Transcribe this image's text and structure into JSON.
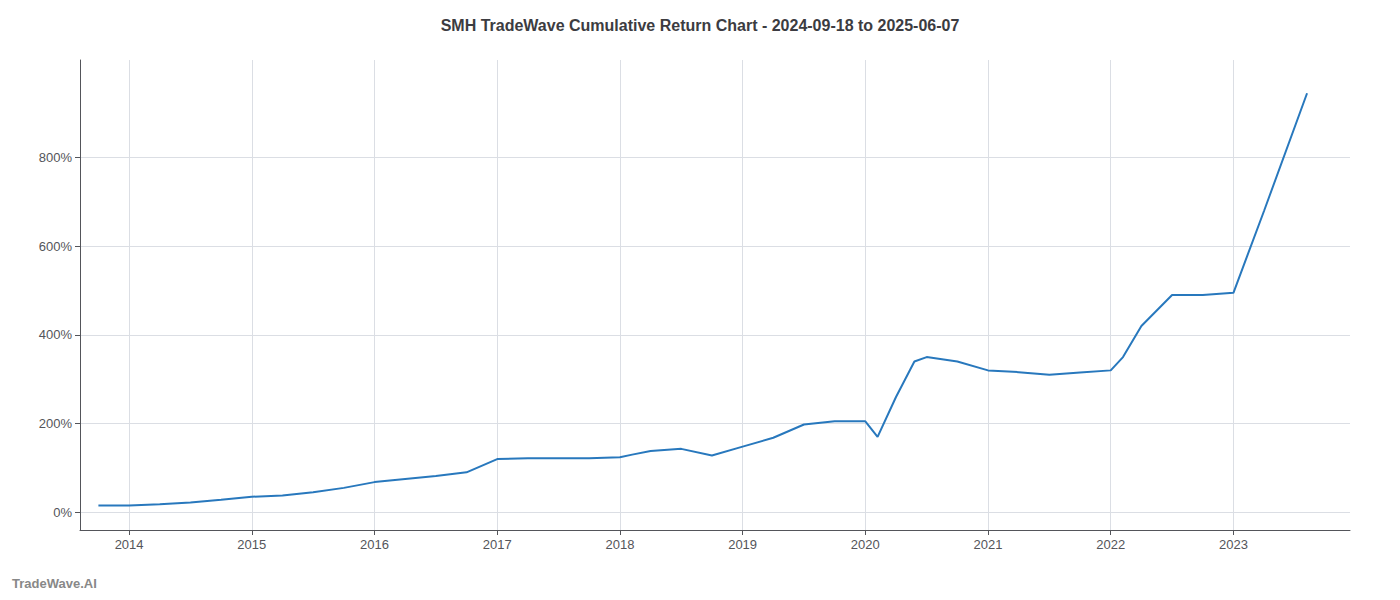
{
  "chart_data": {
    "type": "line",
    "title": "SMH TradeWave Cumulative Return Chart - 2024-09-18 to 2025-06-07",
    "annotations": [
      "TradeWave.AI"
    ],
    "x": [
      2013.75,
      2014.0,
      2014.25,
      2014.5,
      2014.75,
      2015.0,
      2015.25,
      2015.5,
      2015.75,
      2016.0,
      2016.25,
      2016.5,
      2016.75,
      2017.0,
      2017.25,
      2017.5,
      2017.75,
      2018.0,
      2018.1,
      2018.25,
      2018.5,
      2018.75,
      2019.0,
      2019.25,
      2019.5,
      2019.75,
      2020.0,
      2020.1,
      2020.25,
      2020.4,
      2020.5,
      2020.75,
      2021.0,
      2021.25,
      2021.5,
      2021.75,
      2022.0,
      2022.1,
      2022.25,
      2022.5,
      2022.75,
      2023.0,
      2023.25,
      2023.6
    ],
    "values": [
      15,
      15,
      18,
      22,
      28,
      35,
      38,
      45,
      55,
      68,
      75,
      82,
      90,
      120,
      122,
      122,
      122,
      124,
      130,
      138,
      143,
      128,
      148,
      168,
      198,
      205,
      205,
      170,
      260,
      340,
      350,
      340,
      320,
      316,
      310,
      315,
      320,
      350,
      420,
      490,
      490,
      495,
      680,
      945
    ],
    "color": "#2878bd",
    "xlim": [
      2013.6,
      2023.95
    ],
    "ylim": [
      -40,
      1020
    ],
    "xticks": [
      2014,
      2015,
      2016,
      2017,
      2018,
      2019,
      2020,
      2021,
      2022,
      2023
    ],
    "yticks": [
      {
        "value": 0,
        "label": "0%"
      },
      {
        "value": 200,
        "label": "200%"
      },
      {
        "value": 400,
        "label": "400%"
      },
      {
        "value": 600,
        "label": "600%"
      },
      {
        "value": 800,
        "label": "800%"
      }
    ],
    "grid": true
  }
}
